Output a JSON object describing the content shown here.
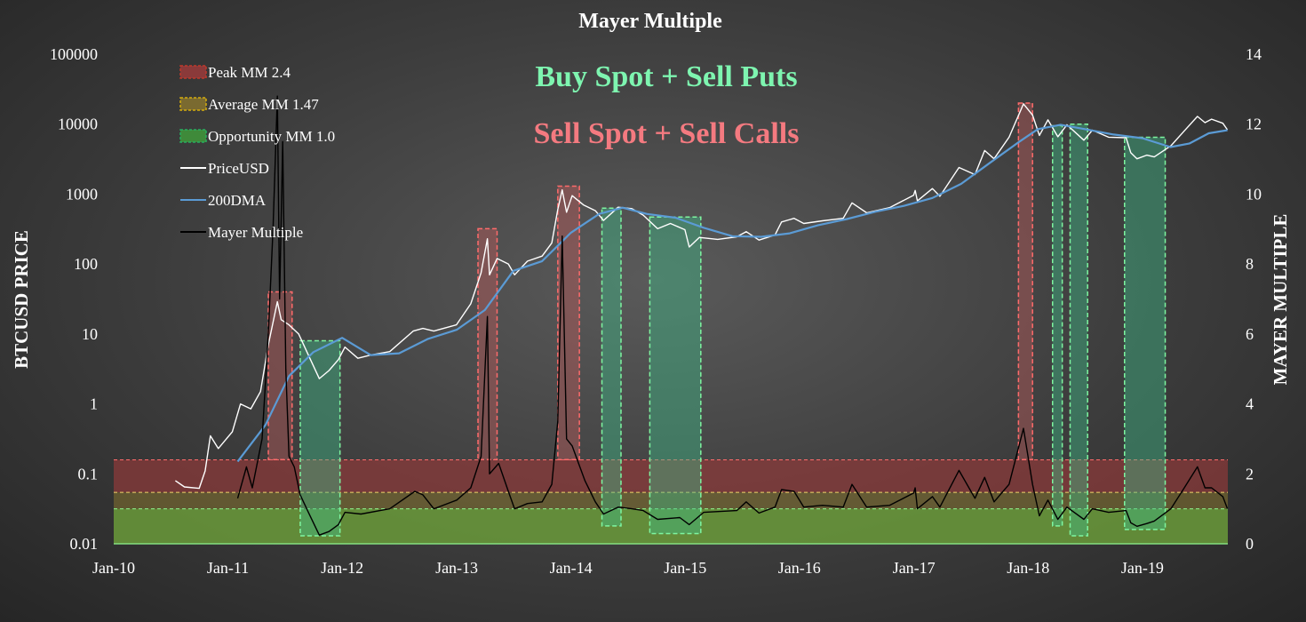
{
  "chart_data": {
    "type": "line",
    "title": "Mayer Multiple",
    "ylabel": "BTCUSD PRICE",
    "y2label": "MAYER MULTIPLE",
    "y_scale": "log",
    "ylim": [
      0.01,
      100000
    ],
    "y2lim": [
      0,
      14
    ],
    "xlim": [
      "2010-01-01",
      "2019-10-01"
    ],
    "x_ticks": [
      "Jan-10",
      "Jan-11",
      "Jan-12",
      "Jan-13",
      "Jan-14",
      "Jan-15",
      "Jan-16",
      "Jan-17",
      "Jan-18",
      "Jan-19"
    ],
    "y_ticks": [
      "100000",
      "10000",
      "1000",
      "100",
      "10",
      "1",
      "0.1",
      "0.01"
    ],
    "y2_ticks": [
      "14",
      "12",
      "10",
      "8",
      "6",
      "4",
      "2",
      "0"
    ],
    "legend_position": "top-left",
    "annotations": [
      {
        "text": "Buy Spot + Sell Puts",
        "color": "#7ef5b0"
      },
      {
        "text": "Sell Spot + Sell Calls",
        "color": "#f47a80"
      }
    ],
    "bands": [
      {
        "name": "Peak MM 2.4",
        "from": 1.47,
        "to": 2.4,
        "color": "#8a3a3a"
      },
      {
        "name": "Average MM 1.47",
        "value": 1.47,
        "color": "#e8c85a"
      },
      {
        "name": "Opportunity MM 1.0",
        "from": 0,
        "to": 1.0,
        "color": "#6a9a3a"
      }
    ],
    "series": [
      {
        "name": "PriceUSD",
        "color": "#ffffff",
        "axis": "left",
        "points": [
          [
            "2010-07-17",
            0.08
          ],
          [
            "2010-08-15",
            0.065
          ],
          [
            "2010-10-01",
            0.062
          ],
          [
            "2010-10-20",
            0.11
          ],
          [
            "2010-11-06",
            0.35
          ],
          [
            "2010-12-01",
            0.23
          ],
          [
            "2011-01-15",
            0.4
          ],
          [
            "2011-02-10",
            1.0
          ],
          [
            "2011-03-15",
            0.85
          ],
          [
            "2011-04-15",
            1.5
          ],
          [
            "2011-05-10",
            7.0
          ],
          [
            "2011-06-08",
            29.0
          ],
          [
            "2011-06-20",
            16.0
          ],
          [
            "2011-07-15",
            13.5
          ],
          [
            "2011-08-15",
            10.0
          ],
          [
            "2011-09-15",
            5.0
          ],
          [
            "2011-10-20",
            2.3
          ],
          [
            "2011-11-20",
            3.0
          ],
          [
            "2011-12-20",
            4.3
          ],
          [
            "2012-01-10",
            6.5
          ],
          [
            "2012-02-20",
            4.5
          ],
          [
            "2012-04-01",
            5.0
          ],
          [
            "2012-06-01",
            5.6
          ],
          [
            "2012-08-15",
            11.0
          ],
          [
            "2012-09-15",
            12.0
          ],
          [
            "2012-10-20",
            11.0
          ],
          [
            "2012-12-31",
            13.5
          ],
          [
            "2013-02-15",
            27.0
          ],
          [
            "2013-03-20",
            75.0
          ],
          [
            "2013-04-09",
            230.0
          ],
          [
            "2013-04-16",
            70.0
          ],
          [
            "2013-05-10",
            120.0
          ],
          [
            "2013-06-15",
            100.0
          ],
          [
            "2013-07-05",
            70.0
          ],
          [
            "2013-08-15",
            110.0
          ],
          [
            "2013-10-01",
            130.0
          ],
          [
            "2013-11-01",
            200.0
          ],
          [
            "2013-11-20",
            600.0
          ],
          [
            "2013-12-04",
            1150.0
          ],
          [
            "2013-12-18",
            550.0
          ],
          [
            "2014-01-05",
            950.0
          ],
          [
            "2014-02-10",
            700.0
          ],
          [
            "2014-03-20",
            580.0
          ],
          [
            "2014-04-15",
            420.0
          ],
          [
            "2014-06-01",
            650.0
          ],
          [
            "2014-07-15",
            620.0
          ],
          [
            "2014-08-20",
            500.0
          ],
          [
            "2014-10-05",
            320.0
          ],
          [
            "2014-11-15",
            380.0
          ],
          [
            "2014-12-31",
            310.0
          ],
          [
            "2015-01-14",
            175.0
          ],
          [
            "2015-02-15",
            240.0
          ],
          [
            "2015-04-15",
            225.0
          ],
          [
            "2015-06-15",
            245.0
          ],
          [
            "2015-07-15",
            290.0
          ],
          [
            "2015-08-25",
            220.0
          ],
          [
            "2015-10-15",
            260.0
          ],
          [
            "2015-11-05",
            400.0
          ],
          [
            "2015-12-15",
            450.0
          ],
          [
            "2016-01-15",
            380.0
          ],
          [
            "2016-03-15",
            415.0
          ],
          [
            "2016-05-20",
            450.0
          ],
          [
            "2016-06-17",
            750.0
          ],
          [
            "2016-08-03",
            540.0
          ],
          [
            "2016-10-15",
            640.0
          ],
          [
            "2016-12-31",
            960.0
          ],
          [
            "2017-01-05",
            1130.0
          ],
          [
            "2017-01-12",
            800.0
          ],
          [
            "2017-03-01",
            1200.0
          ],
          [
            "2017-03-25",
            930.0
          ],
          [
            "2017-05-25",
            2400.0
          ],
          [
            "2017-07-15",
            1900.0
          ],
          [
            "2017-08-15",
            4200.0
          ],
          [
            "2017-09-14",
            3200.0
          ],
          [
            "2017-11-01",
            6500.0
          ],
          [
            "2017-12-17",
            19500.0
          ],
          [
            "2018-01-15",
            13500.0
          ],
          [
            "2018-02-06",
            6900.0
          ],
          [
            "2018-03-05",
            11500.0
          ],
          [
            "2018-04-06",
            6600.0
          ],
          [
            "2018-05-05",
            9800.0
          ],
          [
            "2018-06-28",
            5900.0
          ],
          [
            "2018-07-25",
            8200.0
          ],
          [
            "2018-09-15",
            6500.0
          ],
          [
            "2018-11-10",
            6400.0
          ],
          [
            "2018-11-25",
            3900.0
          ],
          [
            "2018-12-15",
            3200.0
          ],
          [
            "2019-01-15",
            3600.0
          ],
          [
            "2019-02-08",
            3400.0
          ],
          [
            "2019-04-02",
            4900.0
          ],
          [
            "2019-05-15",
            8000.0
          ],
          [
            "2019-06-26",
            12900.0
          ],
          [
            "2019-07-20",
            10500.0
          ],
          [
            "2019-08-10",
            11800.0
          ],
          [
            "2019-09-15",
            10300.0
          ],
          [
            "2019-09-30",
            8300.0
          ]
        ]
      },
      {
        "name": "200DMA",
        "color": "#5b9bd5",
        "axis": "left",
        "points": [
          [
            "2011-02-01",
            0.15
          ],
          [
            "2011-05-01",
            0.5
          ],
          [
            "2011-07-15",
            2.5
          ],
          [
            "2011-10-01",
            5.5
          ],
          [
            "2012-01-01",
            8.8
          ],
          [
            "2012-04-01",
            5.0
          ],
          [
            "2012-07-01",
            5.3
          ],
          [
            "2012-10-01",
            8.5
          ],
          [
            "2013-01-01",
            11.5
          ],
          [
            "2013-04-01",
            22.0
          ],
          [
            "2013-07-01",
            80.0
          ],
          [
            "2013-10-01",
            110.0
          ],
          [
            "2014-01-01",
            280.0
          ],
          [
            "2014-04-01",
            520.0
          ],
          [
            "2014-06-15",
            640.0
          ],
          [
            "2014-09-01",
            520.0
          ],
          [
            "2014-12-01",
            460.0
          ],
          [
            "2015-03-01",
            330.0
          ],
          [
            "2015-06-01",
            250.0
          ],
          [
            "2015-09-01",
            245.0
          ],
          [
            "2015-12-01",
            275.0
          ],
          [
            "2016-03-01",
            360.0
          ],
          [
            "2016-06-01",
            440.0
          ],
          [
            "2016-09-01",
            560.0
          ],
          [
            "2016-12-01",
            680.0
          ],
          [
            "2017-03-01",
            880.0
          ],
          [
            "2017-06-01",
            1400.0
          ],
          [
            "2017-09-01",
            2800.0
          ],
          [
            "2017-12-01",
            5500.0
          ],
          [
            "2018-02-01",
            8500.0
          ],
          [
            "2018-04-15",
            9800.0
          ],
          [
            "2018-07-01",
            8500.0
          ],
          [
            "2018-10-01",
            7100.0
          ],
          [
            "2019-01-01",
            6300.0
          ],
          [
            "2019-04-01",
            4700.0
          ],
          [
            "2019-06-01",
            5300.0
          ],
          [
            "2019-08-01",
            7400.0
          ],
          [
            "2019-09-30",
            8200.0
          ]
        ]
      },
      {
        "name": "Mayer Multiple",
        "color": "#000000",
        "axis": "right",
        "points": [
          [
            "2011-02-01",
            1.3
          ],
          [
            "2011-03-01",
            2.2
          ],
          [
            "2011-03-20",
            1.6
          ],
          [
            "2011-04-20",
            3.0
          ],
          [
            "2011-05-10",
            6.0
          ],
          [
            "2011-05-25",
            9.0
          ],
          [
            "2011-06-08",
            12.8
          ],
          [
            "2011-06-15",
            7.0
          ],
          [
            "2011-06-25",
            11.5
          ],
          [
            "2011-07-05",
            5.0
          ],
          [
            "2011-07-15",
            2.5
          ],
          [
            "2011-08-01",
            2.2
          ],
          [
            "2011-08-20",
            1.4
          ],
          [
            "2011-09-15",
            0.9
          ],
          [
            "2011-10-20",
            0.25
          ],
          [
            "2011-11-20",
            0.35
          ],
          [
            "2011-12-20",
            0.55
          ],
          [
            "2012-01-10",
            0.9
          ],
          [
            "2012-03-01",
            0.85
          ],
          [
            "2012-06-01",
            1.0
          ],
          [
            "2012-08-20",
            1.5
          ],
          [
            "2012-09-15",
            1.4
          ],
          [
            "2012-10-20",
            1.0
          ],
          [
            "2013-01-01",
            1.25
          ],
          [
            "2013-02-15",
            1.6
          ],
          [
            "2013-03-20",
            2.5
          ],
          [
            "2013-04-09",
            6.5
          ],
          [
            "2013-04-16",
            2.0
          ],
          [
            "2013-05-15",
            2.3
          ],
          [
            "2013-06-15",
            1.5
          ],
          [
            "2013-07-05",
            1.0
          ],
          [
            "2013-08-15",
            1.15
          ],
          [
            "2013-10-01",
            1.2
          ],
          [
            "2013-11-01",
            1.7
          ],
          [
            "2013-11-20",
            3.5
          ],
          [
            "2013-12-04",
            8.8
          ],
          [
            "2013-12-18",
            3.0
          ],
          [
            "2014-01-05",
            2.8
          ],
          [
            "2014-02-15",
            1.8
          ],
          [
            "2014-03-20",
            1.2
          ],
          [
            "2014-04-15",
            0.85
          ],
          [
            "2014-06-01",
            1.05
          ],
          [
            "2014-07-15",
            1.0
          ],
          [
            "2014-08-20",
            0.95
          ],
          [
            "2014-10-05",
            0.7
          ],
          [
            "2014-12-15",
            0.75
          ],
          [
            "2015-01-14",
            0.55
          ],
          [
            "2015-03-01",
            0.9
          ],
          [
            "2015-06-15",
            0.95
          ],
          [
            "2015-07-15",
            1.2
          ],
          [
            "2015-08-25",
            0.88
          ],
          [
            "2015-10-15",
            1.05
          ],
          [
            "2015-11-05",
            1.55
          ],
          [
            "2015-12-15",
            1.5
          ],
          [
            "2016-01-15",
            1.05
          ],
          [
            "2016-03-15",
            1.1
          ],
          [
            "2016-05-20",
            1.05
          ],
          [
            "2016-06-17",
            1.7
          ],
          [
            "2016-08-03",
            1.05
          ],
          [
            "2016-10-15",
            1.1
          ],
          [
            "2016-12-31",
            1.45
          ],
          [
            "2017-01-05",
            1.6
          ],
          [
            "2017-01-12",
            1.0
          ],
          [
            "2017-03-01",
            1.35
          ],
          [
            "2017-03-25",
            1.05
          ],
          [
            "2017-05-25",
            2.1
          ],
          [
            "2017-07-15",
            1.3
          ],
          [
            "2017-08-15",
            1.9
          ],
          [
            "2017-09-14",
            1.2
          ],
          [
            "2017-11-01",
            1.7
          ],
          [
            "2017-12-17",
            3.3
          ],
          [
            "2018-01-15",
            1.7
          ],
          [
            "2018-02-06",
            0.8
          ],
          [
            "2018-03-05",
            1.25
          ],
          [
            "2018-04-06",
            0.7
          ],
          [
            "2018-05-05",
            1.05
          ],
          [
            "2018-06-28",
            0.7
          ],
          [
            "2018-07-25",
            1.0
          ],
          [
            "2018-09-15",
            0.9
          ],
          [
            "2018-11-10",
            0.95
          ],
          [
            "2018-11-25",
            0.6
          ],
          [
            "2018-12-15",
            0.5
          ],
          [
            "2019-01-15",
            0.58
          ],
          [
            "2019-02-08",
            0.65
          ],
          [
            "2019-04-02",
            1.0
          ],
          [
            "2019-05-15",
            1.6
          ],
          [
            "2019-06-26",
            2.2
          ],
          [
            "2019-07-20",
            1.6
          ],
          [
            "2019-08-10",
            1.6
          ],
          [
            "2019-09-15",
            1.35
          ],
          [
            "2019-09-30",
            1.0
          ]
        ]
      }
    ],
    "peak_zones": [
      {
        "start": "2011-05-10",
        "end": "2011-07-25",
        "low": 0.16,
        "high": 40.0
      },
      {
        "start": "2013-03-10",
        "end": "2013-05-10",
        "low": 0.16,
        "high": 320.0
      },
      {
        "start": "2013-11-20",
        "end": "2014-01-28",
        "low": 0.16,
        "high": 1300.0
      },
      {
        "start": "2017-12-01",
        "end": "2018-01-15",
        "low": 0.16,
        "high": 20000.0
      }
    ],
    "opportunity_zones": [
      {
        "start": "2011-08-20",
        "end": "2011-12-25",
        "low": 0.013,
        "high": 8.0
      },
      {
        "start": "2014-04-10",
        "end": "2014-06-10",
        "low": 0.018,
        "high": 630.0
      },
      {
        "start": "2014-09-10",
        "end": "2015-02-20",
        "low": 0.014,
        "high": 470.0
      },
      {
        "start": "2018-03-20",
        "end": "2018-04-20",
        "low": 0.018,
        "high": 9500.0
      },
      {
        "start": "2018-05-15",
        "end": "2018-07-10",
        "low": 0.013,
        "high": 10000.0
      },
      {
        "start": "2018-11-05",
        "end": "2019-03-15",
        "low": 0.016,
        "high": 6500.0
      }
    ]
  },
  "legend": {
    "items": [
      {
        "label": "Peak MM 2.4",
        "kind": "box",
        "color": "#c0392b"
      },
      {
        "label": "Average MM 1.47",
        "kind": "box",
        "color": "#d4ac0d"
      },
      {
        "label": "Opportunity MM 1.0",
        "kind": "box",
        "color": "#27ae60"
      },
      {
        "label": "PriceUSD",
        "kind": "line",
        "color": "#ffffff"
      },
      {
        "label": "200DMA",
        "kind": "line",
        "color": "#5b9bd5"
      },
      {
        "label": "Mayer Multiple",
        "kind": "line",
        "color": "#000000"
      }
    ]
  }
}
